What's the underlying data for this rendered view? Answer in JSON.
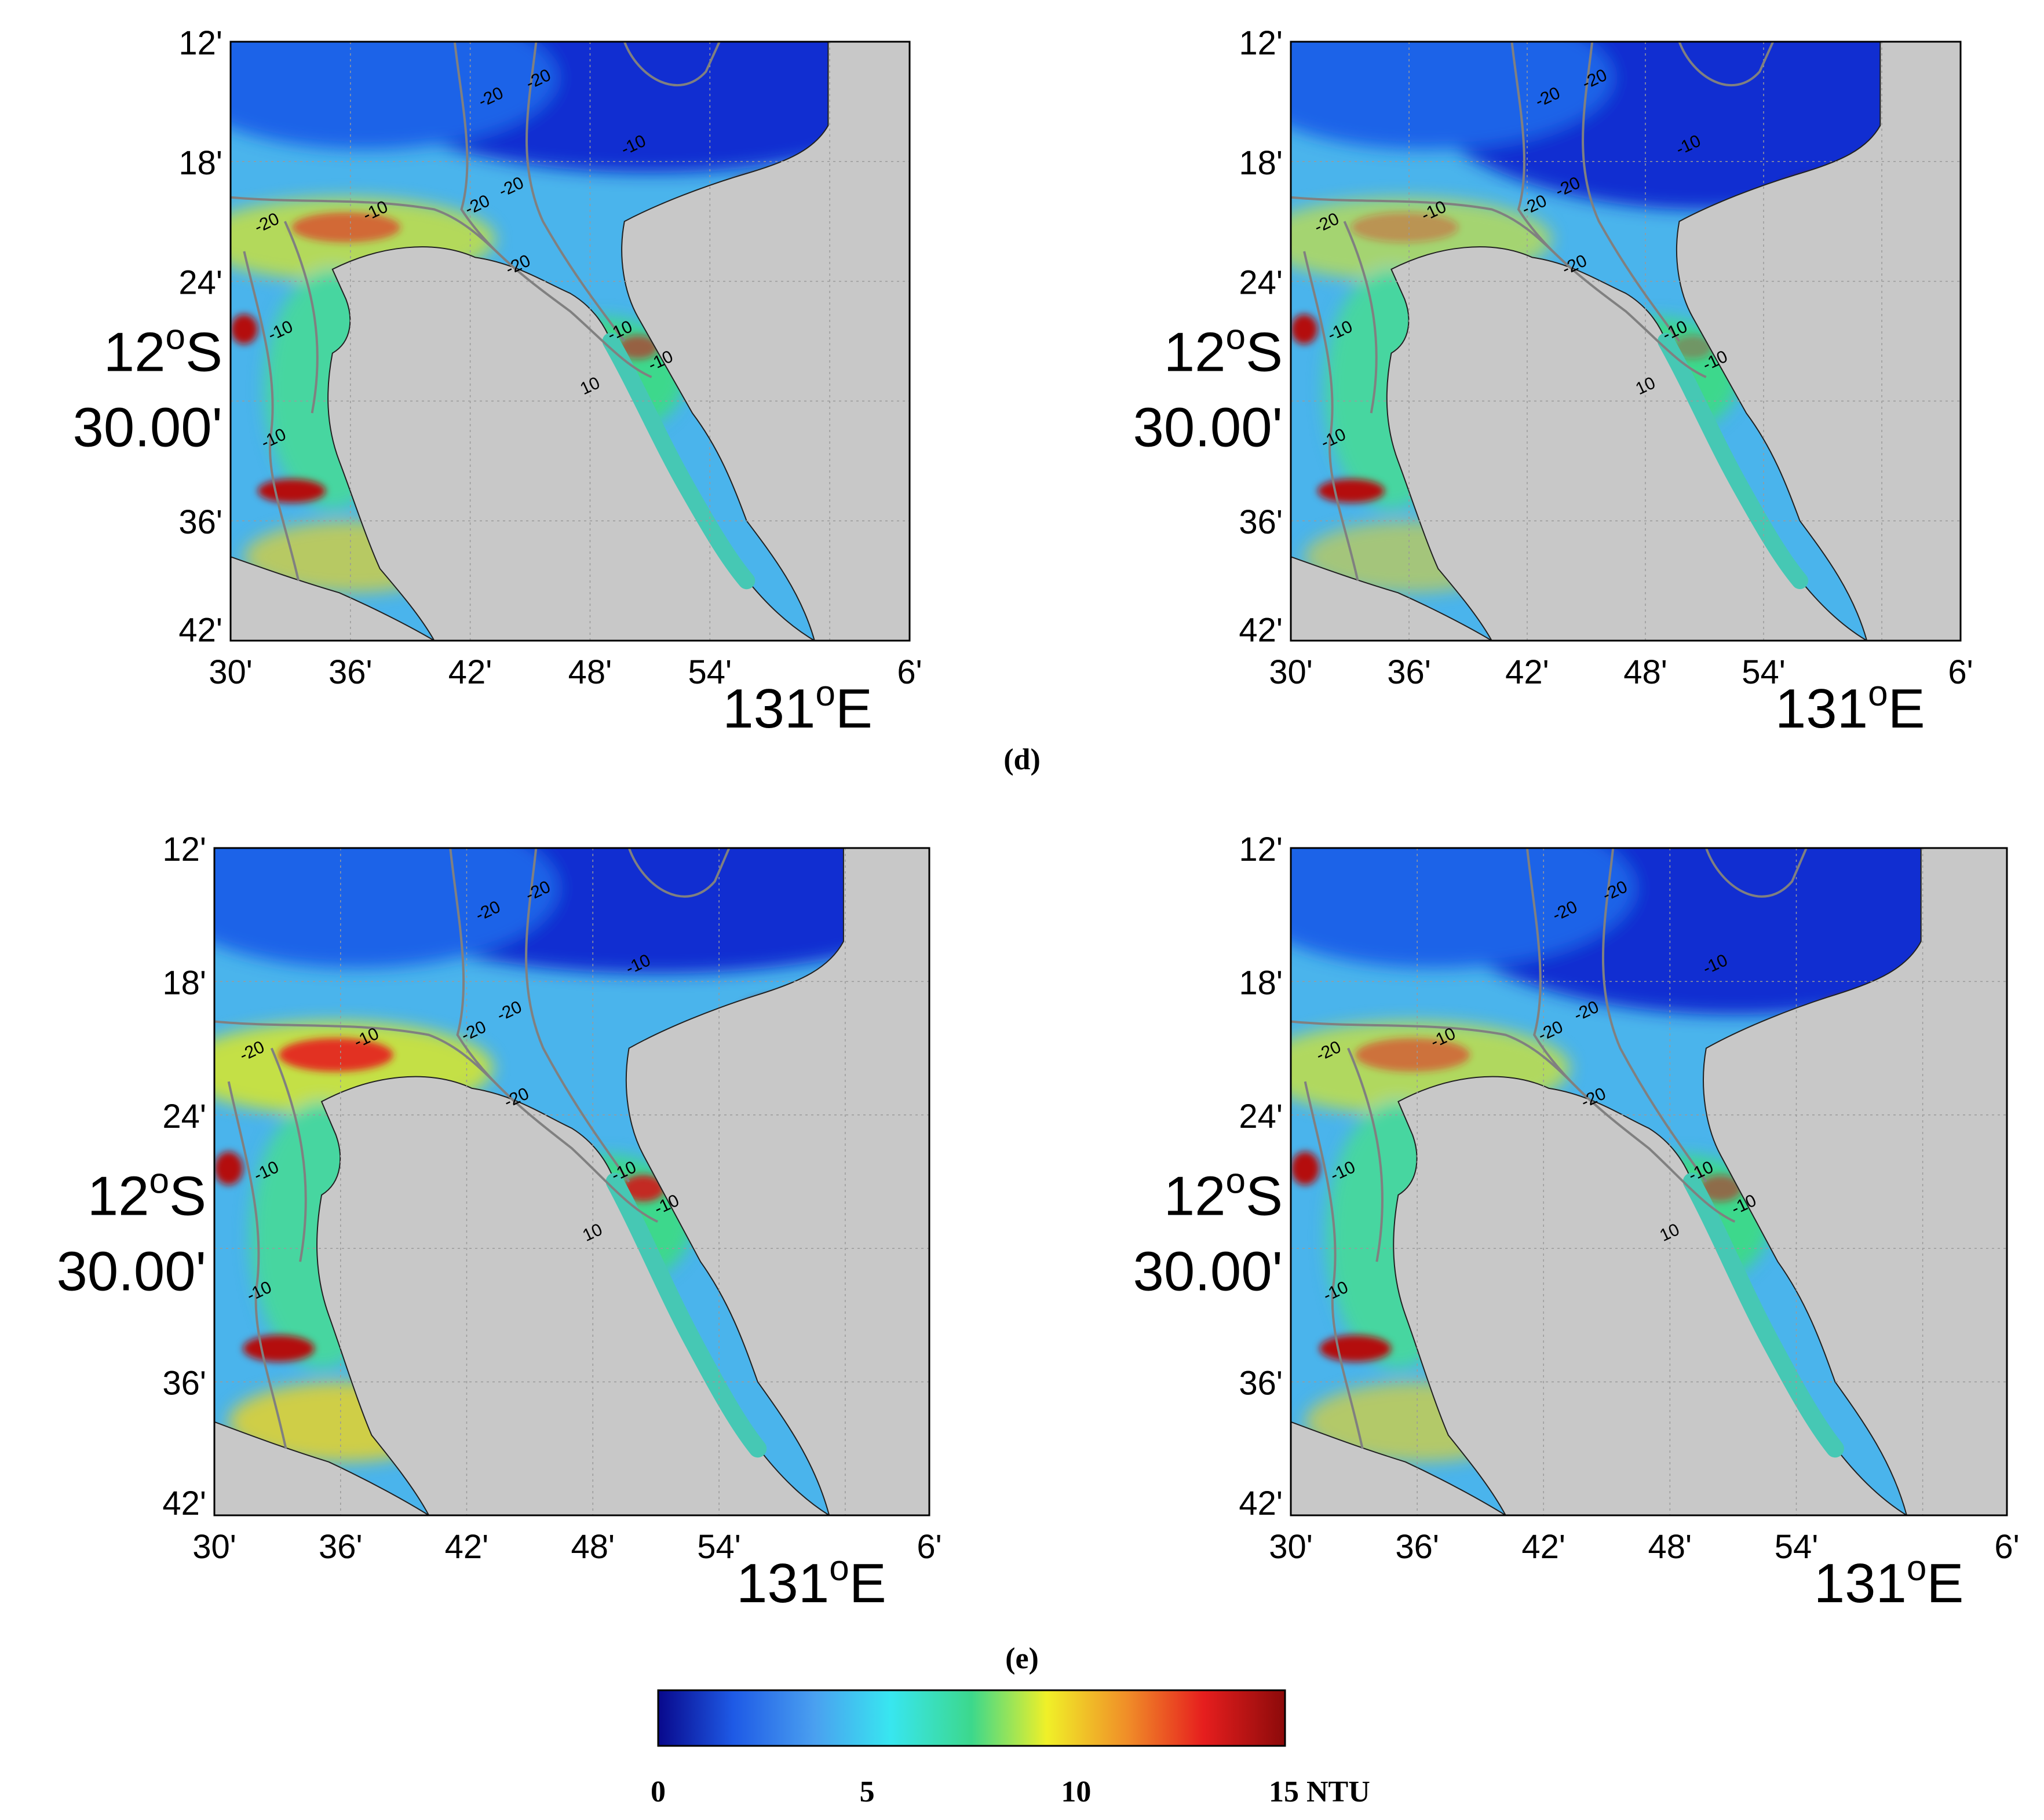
{
  "panels": [
    {
      "id": "d-left",
      "variant": 0
    },
    {
      "id": "d-right",
      "variant": 1
    },
    {
      "id": "e-left",
      "variant": 2
    },
    {
      "id": "e-right",
      "variant": 3
    }
  ],
  "axes": {
    "lat_ticks": [
      "12'",
      "18'",
      "24'",
      "36'",
      "42'"
    ],
    "lat_big_line1": "12°S",
    "lat_big_line1_base": "12",
    "lat_big_line1_sup": "o",
    "lat_big_line1_suffix": "S",
    "lat_big_line2": "30.00'",
    "lon_ticks": [
      "30'",
      "36'",
      "42'",
      "48'",
      "54'",
      "6'"
    ],
    "lon_big_base": "131",
    "lon_big_sup": "o",
    "lon_big_suffix": "E"
  },
  "contour_labels": [
    "-20",
    "-20",
    "-10",
    "-10",
    "-20",
    "-20",
    "-20",
    "-10",
    "-20",
    "-10",
    "-10",
    "10",
    "-10"
  ],
  "panel_labels": {
    "d": "(d)",
    "e": "(e)"
  },
  "colorbar": {
    "ticks": [
      "0",
      "5",
      "10",
      "15 NTU"
    ],
    "min": 0,
    "max": 15,
    "unit": "NTU",
    "stops": [
      "#08088c",
      "#1e5ae6",
      "#4aa0f0",
      "#38e6f0",
      "#3cd88c",
      "#f0f028",
      "#f08c28",
      "#e61e1e",
      "#8c0a0a"
    ]
  },
  "colors": {
    "land": "#c8c8c8",
    "contour": "#808080",
    "grid": "#9a9a9a"
  }
}
